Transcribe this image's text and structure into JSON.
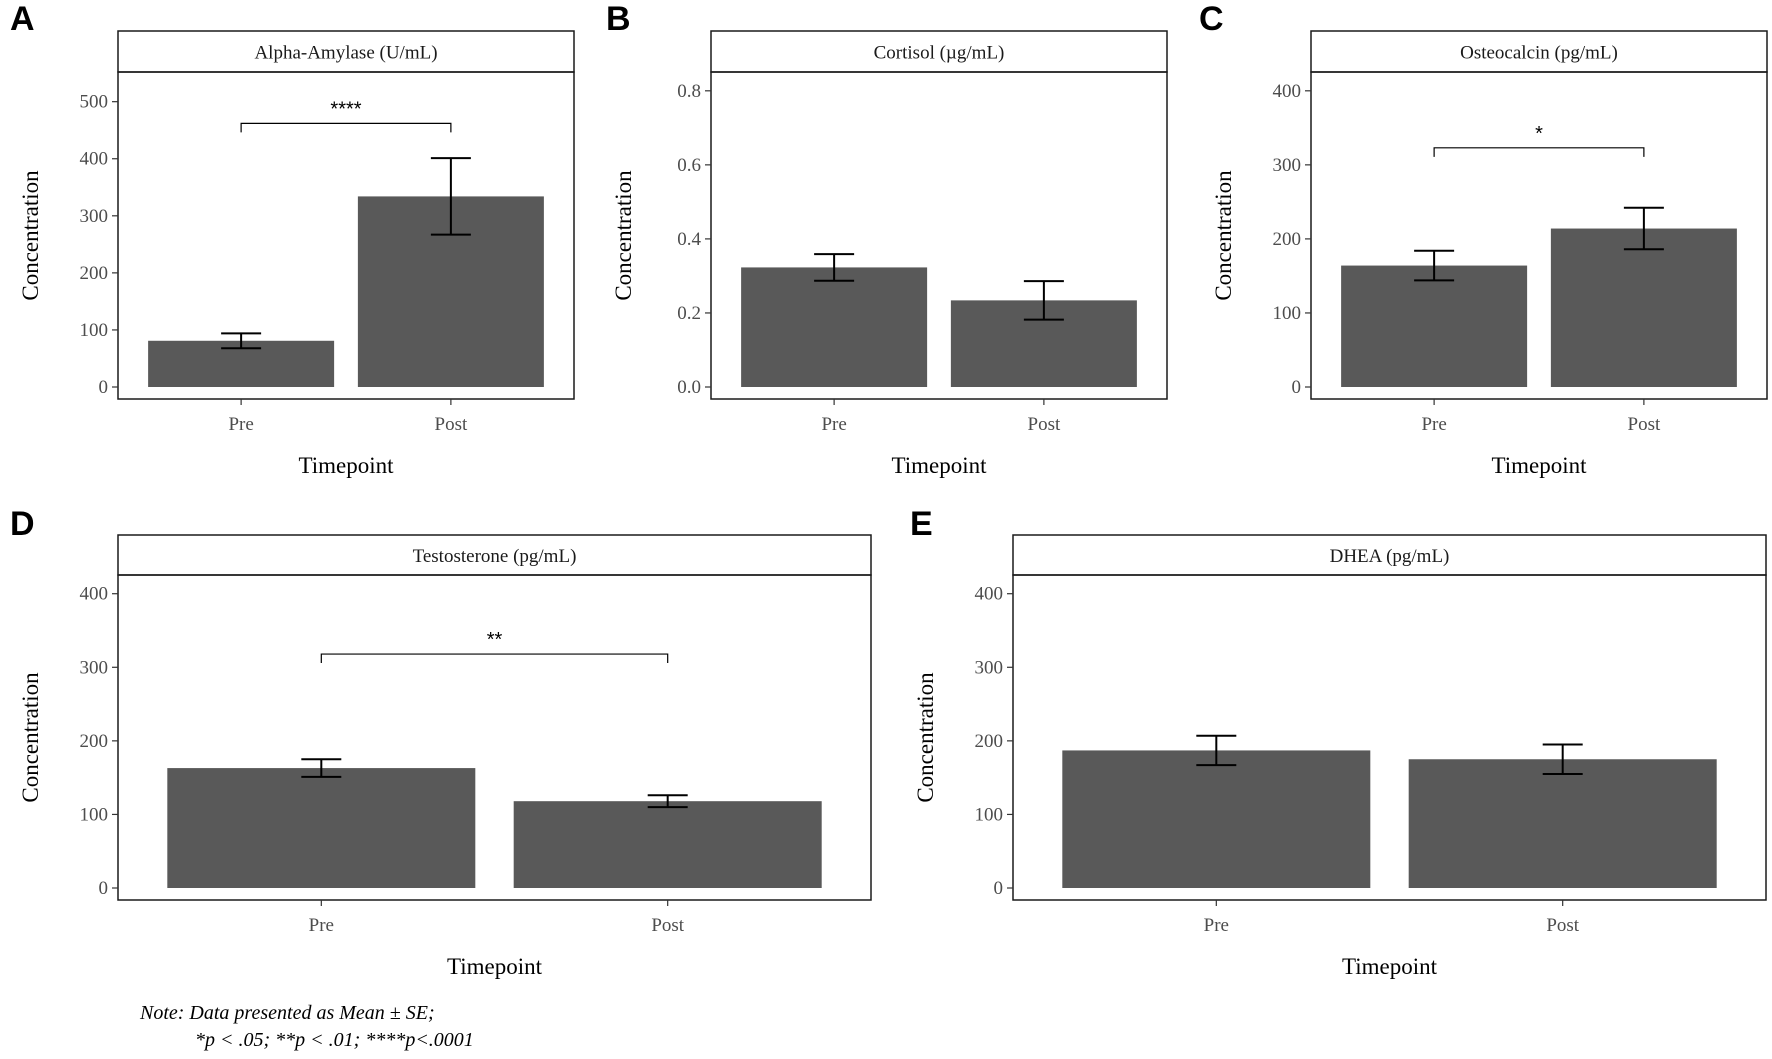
{
  "figure": {
    "note_line1": "Note: Data presented as Mean ± SE;",
    "note_line2": "*p < .05; **p < .01; ****p<.0001"
  },
  "chart_data": [
    {
      "type": "bar",
      "panel": "A",
      "title": "Alpha-Amylase (U/mL)",
      "xlabel": "Timepoint",
      "ylabel": "Concentration",
      "categories": [
        "Pre",
        "Post"
      ],
      "values": [
        81,
        334
      ],
      "se": [
        13,
        67
      ],
      "ylim": [
        0,
        545
      ],
      "yticks": [
        0,
        100,
        200,
        300,
        400,
        500
      ],
      "ytick_labels": [
        "0",
        "100",
        "200",
        "300",
        "400",
        "500"
      ],
      "significance": {
        "label": "****",
        "from": "Pre",
        "to": "Post",
        "y": 462
      }
    },
    {
      "type": "bar",
      "panel": "B",
      "title": "Cortisol (µg/mL)",
      "xlabel": "Timepoint",
      "ylabel": "Concentration",
      "categories": [
        "Pre",
        "Post"
      ],
      "values": [
        0.323,
        0.234
      ],
      "se": [
        0.036,
        0.052
      ],
      "ylim": [
        0,
        0.84
      ],
      "yticks": [
        0.0,
        0.2,
        0.4,
        0.6,
        0.8
      ],
      "ytick_labels": [
        "0.0",
        "0.2",
        "0.4",
        "0.6",
        "0.8"
      ],
      "significance": null
    },
    {
      "type": "bar",
      "panel": "C",
      "title": "Osteocalcin (pg/mL)",
      "xlabel": "Timepoint",
      "ylabel": "Concentration",
      "categories": [
        "Pre",
        "Post"
      ],
      "values": [
        164,
        214
      ],
      "se": [
        20,
        28
      ],
      "ylim": [
        0,
        420
      ],
      "yticks": [
        0,
        100,
        200,
        300,
        400
      ],
      "ytick_labels": [
        "0",
        "100",
        "200",
        "300",
        "400"
      ],
      "significance": {
        "label": "*",
        "from": "Pre",
        "to": "Post",
        "y": 323
      }
    },
    {
      "type": "bar",
      "panel": "D",
      "title": "Testosterone (pg/mL)",
      "xlabel": "Timepoint",
      "ylabel": "Concentration",
      "categories": [
        "Pre",
        "Post"
      ],
      "values": [
        163,
        118
      ],
      "se": [
        12,
        8
      ],
      "ylim": [
        0,
        420
      ],
      "yticks": [
        0,
        100,
        200,
        300,
        400
      ],
      "ytick_labels": [
        "0",
        "100",
        "200",
        "300",
        "400"
      ],
      "significance": {
        "label": "**",
        "from": "Pre",
        "to": "Post",
        "y": 318
      }
    },
    {
      "type": "bar",
      "panel": "E",
      "title": "DHEA (pg/mL)",
      "xlabel": "Timepoint",
      "ylabel": "Concentration",
      "categories": [
        "Pre",
        "Post"
      ],
      "values": [
        187,
        175
      ],
      "se": [
        20,
        20
      ],
      "ylim": [
        0,
        420
      ],
      "yticks": [
        0,
        100,
        200,
        300,
        400
      ],
      "ytick_labels": [
        "0",
        "100",
        "200",
        "300",
        "400"
      ],
      "significance": null
    }
  ]
}
